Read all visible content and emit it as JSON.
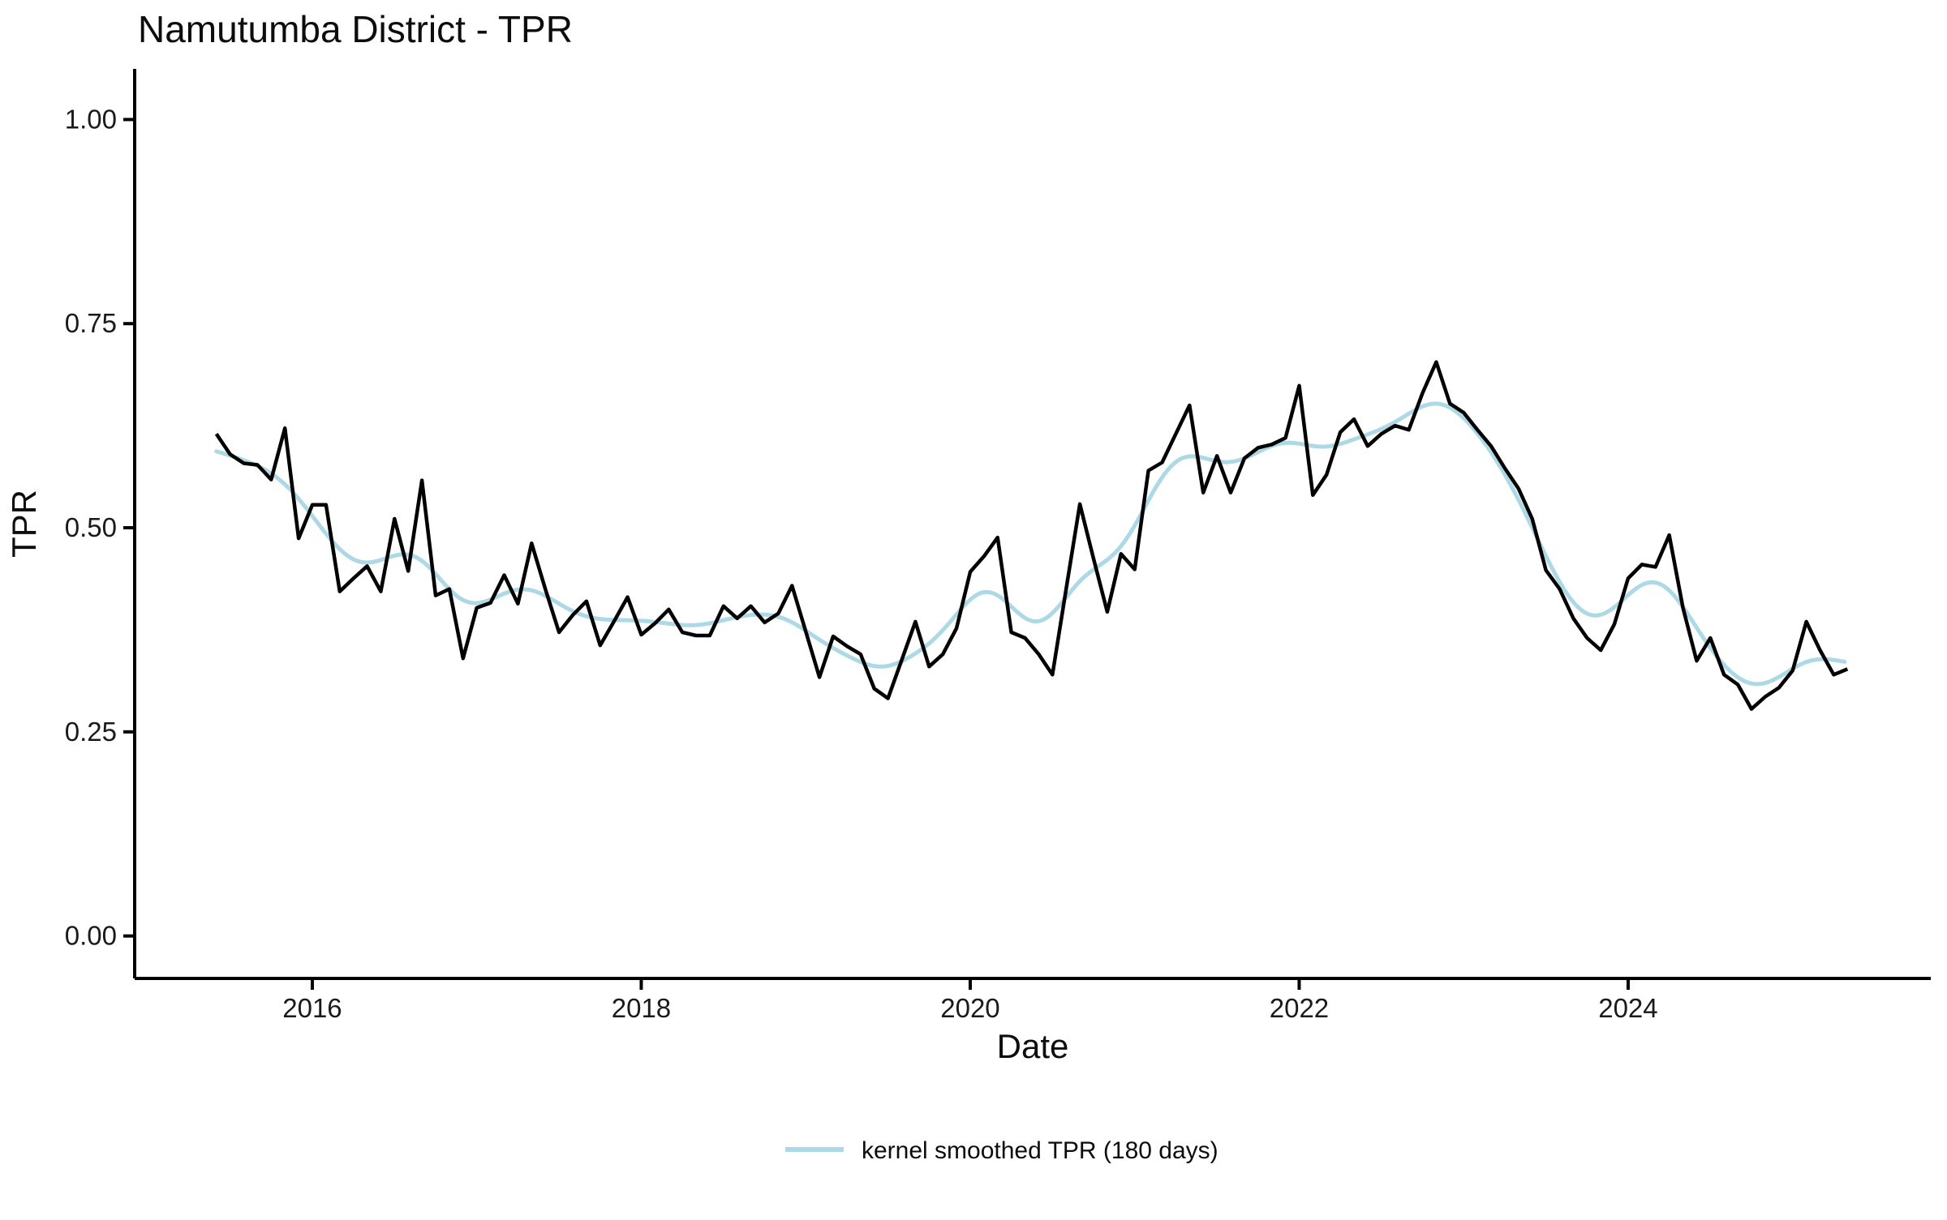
{
  "title": "Namutumba District - TPR",
  "chart_data": {
    "type": "line",
    "title": "Namutumba District - TPR",
    "xlabel": "Date",
    "ylabel": "TPR",
    "x_ticks": [
      {
        "v": 2016,
        "label": "2016"
      },
      {
        "v": 2018,
        "label": "2018"
      },
      {
        "v": 2020,
        "label": "2020"
      },
      {
        "v": 2022,
        "label": "2022"
      },
      {
        "v": 2024,
        "label": "2024"
      }
    ],
    "y_ticks": [
      {
        "v": 0.0,
        "label": "0.00"
      },
      {
        "v": 0.25,
        "label": "0.25"
      },
      {
        "v": 0.5,
        "label": "0.50"
      },
      {
        "v": 0.75,
        "label": "0.75"
      },
      {
        "v": 1.0,
        "label": "1.00"
      }
    ],
    "xlim": [
      2014.92,
      2025.84
    ],
    "ylim": [
      -0.052,
      1.062
    ],
    "grid": false,
    "legend_position": "bottom",
    "legend": [
      {
        "label": "kernel smoothed TPR (180 days)",
        "color": "#ADD8E6"
      }
    ],
    "colors": {
      "raw_line": "#000000",
      "smoothed_line": "#ADD8E6",
      "axis": "#000000",
      "background": "#FFFFFF"
    },
    "smoothing": {
      "method": "gaussian kernel",
      "window_days": 180,
      "sd_days": 60
    },
    "series": [
      {
        "name": "TPR",
        "frequency": "monthly",
        "start": "2015-06",
        "end": "2025-05",
        "values": [
          0.615,
          0.59,
          0.579,
          0.577,
          0.559,
          0.622,
          0.487,
          0.528,
          0.528,
          0.422,
          0.438,
          0.453,
          0.422,
          0.511,
          0.447,
          0.558,
          0.417,
          0.425,
          0.34,
          0.402,
          0.408,
          0.442,
          0.407,
          0.481,
          0.425,
          0.372,
          0.393,
          0.41,
          0.356,
          0.385,
          0.415,
          0.369,
          0.383,
          0.4,
          0.372,
          0.368,
          0.368,
          0.404,
          0.389,
          0.404,
          0.384,
          0.395,
          0.429,
          0.373,
          0.317,
          0.367,
          0.355,
          0.345,
          0.303,
          0.291,
          0.338,
          0.385,
          0.33,
          0.345,
          0.377,
          0.446,
          0.465,
          0.488,
          0.372,
          0.365,
          0.345,
          0.32,
          0.425,
          0.529,
          0.462,
          0.397,
          0.468,
          0.449,
          0.57,
          0.58,
          0.615,
          0.65,
          0.543,
          0.588,
          0.543,
          0.585,
          0.598,
          0.602,
          0.61,
          0.674,
          0.54,
          0.565,
          0.617,
          0.633,
          0.6,
          0.615,
          0.625,
          0.62,
          0.665,
          0.703,
          0.652,
          0.641,
          0.62,
          0.6,
          0.573,
          0.548,
          0.511,
          0.448,
          0.425,
          0.389,
          0.365,
          0.35,
          0.382,
          0.438,
          0.455,
          0.452,
          0.491,
          0.402,
          0.337,
          0.365,
          0.32,
          0.308,
          0.278,
          0.293,
          0.304,
          0.325,
          0.385,
          0.35,
          0.32,
          0.327
        ]
      },
      {
        "name": "kernel smoothed TPR (180 days)",
        "derived_from": "TPR",
        "derivation": "gaussian kernel smooth, sd 60 days"
      }
    ]
  }
}
